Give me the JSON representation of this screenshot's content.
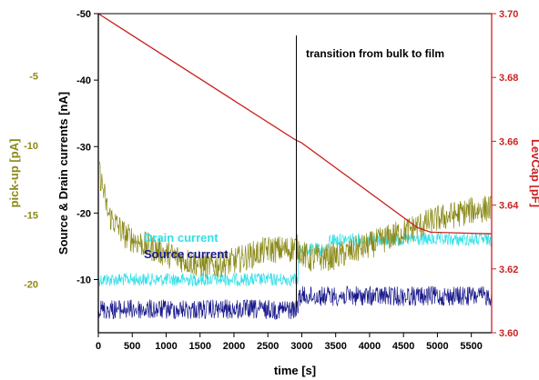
{
  "chart_data": {
    "type": "line",
    "colors": {
      "pickup": "#8a8a1a",
      "levcap": "#cc2222",
      "drain": "#33e0e8",
      "source": "#1a1a8c",
      "axis_black": "#000000"
    },
    "x_axis": {
      "label": "time [s]",
      "range": [
        0,
        5800
      ],
      "ticks": [
        0,
        500,
        1000,
        1500,
        2000,
        2500,
        3000,
        3500,
        4000,
        4500,
        5000,
        5500
      ]
    },
    "y_axis_pickup": {
      "label": "pick-up [pA]",
      "range": [
        -23.5,
        -0.5
      ],
      "ticks": [
        -20,
        -15,
        -10,
        -5
      ]
    },
    "y_axis_currents": {
      "label": "Source & Drain currents [nA]",
      "range": [
        -50,
        -2
      ],
      "ticks": [
        -50,
        -40,
        -30,
        -20,
        -10
      ],
      "direction": "inverted"
    },
    "y_axis_levcap": {
      "label": "LevCap [pF]",
      "range": [
        3.6,
        3.7
      ],
      "ticks": [
        "3.60",
        "3.62",
        "3.64",
        "3.66",
        "3.68",
        "3.70"
      ]
    },
    "annotations": {
      "transition_text": "transition from bulk to film",
      "transition_x": 2920
    },
    "legend": {
      "drain": "Drain current",
      "source": "Source current"
    },
    "series": [
      {
        "name": "pick-up",
        "axis": "pickup",
        "x": [
          20,
          150,
          400,
          700,
          1000,
          1300,
          1600,
          1900,
          2200,
          2500,
          2800,
          2920,
          3100,
          3500,
          4000,
          4500,
          5000,
          5500,
          5800
        ],
        "y": [
          -12.0,
          -15.0,
          -16.5,
          -17.2,
          -17.8,
          -18.3,
          -18.7,
          -18.5,
          -18.0,
          -17.5,
          -17.5,
          -17.3,
          -18.2,
          -18.0,
          -17.2,
          -16.2,
          -15.3,
          -14.7,
          -14.5
        ],
        "noise": 1.0
      },
      {
        "name": "Drain current",
        "axis": "currents",
        "x": [
          0,
          2950,
          2950,
          3400,
          3400,
          5800
        ],
        "y": [
          -10.0,
          -10.0,
          -14.5,
          -14.5,
          -16.0,
          -16.0
        ],
        "noise": 1.0
      },
      {
        "name": "Source current",
        "axis": "currents",
        "x": [
          0,
          2950,
          2950,
          5800
        ],
        "y": [
          -5.5,
          -5.5,
          -7.5,
          -7.5
        ],
        "noise": 1.5
      },
      {
        "name": "LevCap",
        "axis": "levcap",
        "x": [
          0,
          2900,
          3000,
          4700,
          4900,
          5800
        ],
        "y": [
          3.7,
          3.6605,
          3.6595,
          3.633,
          3.6315,
          3.631
        ]
      }
    ]
  }
}
